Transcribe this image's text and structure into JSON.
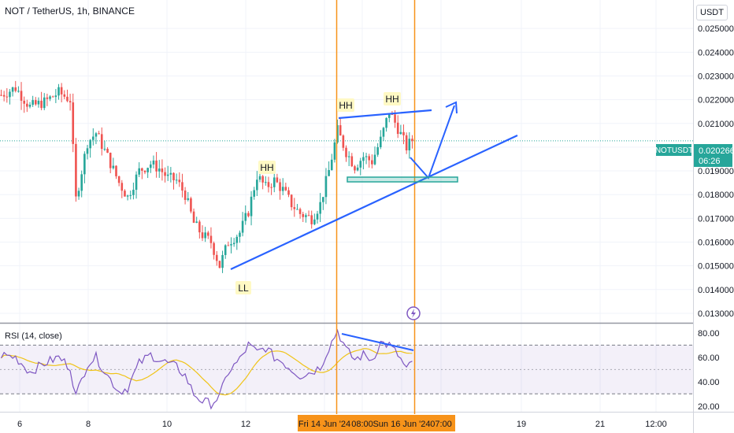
{
  "header": {
    "symbol_title": "NOT / TetherUS, 1h, BINANCE",
    "currency_button": "USDT"
  },
  "price_badge": {
    "ticker": "NOTUSDT",
    "price": "0.020266",
    "countdown": "06:26"
  },
  "colors": {
    "up": "#26a69a",
    "down": "#ef5350",
    "annotation_blue": "#2962ff",
    "marker_orange": "#f7931a",
    "rsi_line": "#7e57c2",
    "rsi_ma": "#f0c419",
    "last_price": "#26a69a"
  },
  "chart_data": [
    {
      "type": "candlestick",
      "title": "NOT / TetherUS, 1h, BINANCE",
      "y_axis": {
        "ticks": [
          "0.025000",
          "0.024000",
          "0.023000",
          "0.022000",
          "0.021000",
          "0.019000",
          "0.018000",
          "0.017000",
          "0.016000",
          "0.015000",
          "0.014000",
          "0.013000"
        ],
        "range": [
          0.0126,
          0.0262
        ]
      },
      "x_axis": {
        "ticks": [
          "6",
          "8",
          "10",
          "12",
          "19",
          "21",
          "12:00"
        ],
        "highlighted_ticks": [
          "Fri 14 Jun '24",
          "08:00",
          "Sun 16 Jun '24",
          "07:00"
        ]
      },
      "last_price": 0.020266,
      "annotations": [
        "HH",
        "HH",
        "HH",
        "LL"
      ],
      "anchors": [
        [
          0,
          0.0222
        ],
        [
          5,
          0.0225
        ],
        [
          10,
          0.0217
        ],
        [
          15,
          0.0219
        ],
        [
          20,
          0.0223
        ],
        [
          24,
          0.022
        ],
        [
          26,
          0.0178
        ],
        [
          30,
          0.0202
        ],
        [
          33,
          0.0206
        ],
        [
          37,
          0.0196
        ],
        [
          41,
          0.0185
        ],
        [
          44,
          0.0179
        ],
        [
          48,
          0.019
        ],
        [
          52,
          0.0193
        ],
        [
          55,
          0.0191
        ],
        [
          58,
          0.0187
        ],
        [
          61,
          0.0186
        ],
        [
          64,
          0.018
        ],
        [
          67,
          0.0168
        ],
        [
          70,
          0.0163
        ],
        [
          73,
          0.016
        ],
        [
          76,
          0.015
        ],
        [
          79,
          0.016
        ],
        [
          83,
          0.0164
        ],
        [
          86,
          0.0173
        ],
        [
          89,
          0.0188
        ],
        [
          92,
          0.0183
        ],
        [
          95,
          0.0186
        ],
        [
          98,
          0.0182
        ],
        [
          101,
          0.0176
        ],
        [
          104,
          0.0172
        ],
        [
          108,
          0.017
        ],
        [
          111,
          0.0176
        ],
        [
          114,
          0.019
        ],
        [
          117,
          0.0207
        ],
        [
          120,
          0.0198
        ],
        [
          123,
          0.0192
        ],
        [
          126,
          0.0196
        ],
        [
          129,
          0.0194
        ],
        [
          132,
          0.0203
        ],
        [
          135,
          0.0215
        ],
        [
          138,
          0.0208
        ],
        [
          141,
          0.02
        ],
        [
          143,
          0.0203
        ]
      ]
    },
    {
      "type": "line",
      "title": "RSI (14, close)",
      "y_axis": {
        "ticks": [
          "80.00",
          "60.00",
          "40.00",
          "20.00"
        ],
        "range": [
          16,
          87
        ]
      },
      "bands": {
        "upper": 70,
        "middle": 50,
        "lower": 30
      },
      "anchors": [
        [
          0,
          62
        ],
        [
          5,
          60
        ],
        [
          10,
          48
        ],
        [
          15,
          55
        ],
        [
          20,
          60
        ],
        [
          24,
          52
        ],
        [
          26,
          28
        ],
        [
          30,
          55
        ],
        [
          33,
          60
        ],
        [
          37,
          45
        ],
        [
          41,
          32
        ],
        [
          44,
          35
        ],
        [
          48,
          55
        ],
        [
          52,
          62
        ],
        [
          55,
          58
        ],
        [
          58,
          55
        ],
        [
          61,
          52
        ],
        [
          64,
          45
        ],
        [
          67,
          30
        ],
        [
          70,
          24
        ],
        [
          73,
          22
        ],
        [
          76,
          28
        ],
        [
          79,
          48
        ],
        [
          83,
          58
        ],
        [
          86,
          70
        ],
        [
          89,
          64
        ],
        [
          92,
          68
        ],
        [
          95,
          60
        ],
        [
          98,
          56
        ],
        [
          101,
          50
        ],
        [
          104,
          45
        ],
        [
          108,
          48
        ],
        [
          111,
          52
        ],
        [
          114,
          68
        ],
        [
          117,
          82
        ],
        [
          120,
          66
        ],
        [
          123,
          58
        ],
        [
          126,
          62
        ],
        [
          129,
          58
        ],
        [
          132,
          72
        ],
        [
          135,
          70
        ],
        [
          138,
          62
        ],
        [
          141,
          50
        ],
        [
          143,
          55
        ]
      ]
    }
  ]
}
